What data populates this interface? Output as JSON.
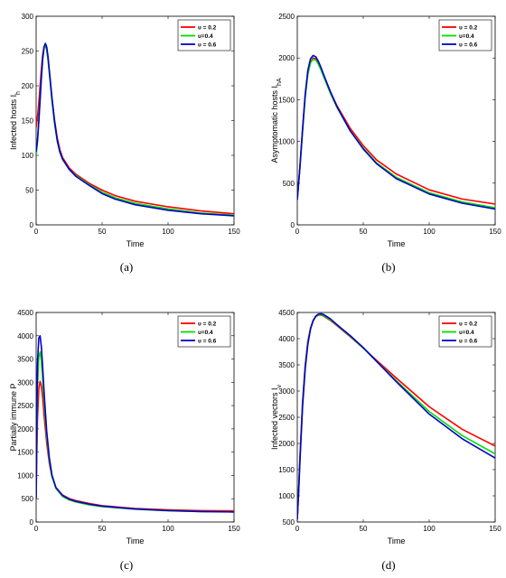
{
  "chart_data": [
    {
      "type": "line",
      "caption": "(a)",
      "xlabel": "Time",
      "ylabel": "Infected  hosts  I",
      "ylabel_sub": "h",
      "xlim": [
        0,
        150
      ],
      "ylim": [
        0,
        300
      ],
      "xticks": [
        0,
        50,
        100,
        150
      ],
      "yticks": [
        0,
        50,
        100,
        150,
        200,
        250,
        300
      ],
      "legend_position": "top-right",
      "grid": false,
      "series": [
        {
          "name": "υ = 0.2",
          "color": "#ff0000",
          "x": [
            0,
            1,
            2,
            3,
            4,
            5,
            6,
            7,
            8,
            9,
            10,
            12,
            14,
            16,
            18,
            20,
            25,
            30,
            40,
            50,
            60,
            75,
            100,
            125,
            150
          ],
          "y": [
            140,
            155,
            175,
            200,
            225,
            245,
            256,
            258,
            252,
            238,
            220,
            182,
            150,
            125,
            108,
            97,
            82,
            73,
            60,
            50,
            42,
            34,
            26,
            20,
            16
          ]
        },
        {
          "name": "υ=0.4",
          "color": "#00dd00",
          "x": [
            0,
            1,
            2,
            3,
            4,
            5,
            6,
            7,
            8,
            9,
            10,
            12,
            14,
            16,
            18,
            20,
            25,
            30,
            40,
            50,
            60,
            75,
            100,
            125,
            150
          ],
          "y": [
            100,
            122,
            150,
            182,
            212,
            238,
            254,
            258,
            252,
            238,
            218,
            178,
            145,
            120,
            104,
            94,
            80,
            71,
            58,
            47,
            39,
            31,
            23,
            17,
            14
          ]
        },
        {
          "name": "υ = 0.6",
          "color": "#0000cc",
          "x": [
            0,
            1,
            2,
            3,
            4,
            5,
            6,
            7,
            8,
            9,
            10,
            12,
            14,
            16,
            18,
            20,
            25,
            30,
            40,
            50,
            60,
            75,
            100,
            125,
            150
          ],
          "y": [
            105,
            120,
            148,
            180,
            213,
            240,
            256,
            261,
            256,
            242,
            222,
            182,
            148,
            122,
            105,
            95,
            80,
            70,
            57,
            45,
            37,
            29,
            21,
            16,
            13
          ]
        }
      ]
    },
    {
      "type": "line",
      "caption": "(b)",
      "xlabel": "Time",
      "ylabel": "Asymptomatic  hosts  I",
      "ylabel_sub": "hA",
      "xlim": [
        0,
        150
      ],
      "ylim": [
        0,
        2500
      ],
      "xticks": [
        0,
        50,
        100,
        150
      ],
      "yticks": [
        0,
        500,
        1000,
        1500,
        2000,
        2500
      ],
      "legend_position": "top-right",
      "grid": false,
      "series": [
        {
          "name": "υ = 0.2",
          "color": "#ff0000",
          "x": [
            0,
            2,
            4,
            6,
            8,
            10,
            12,
            14,
            16,
            18,
            20,
            25,
            30,
            40,
            50,
            60,
            75,
            100,
            125,
            150
          ],
          "y": [
            300,
            700,
            1150,
            1550,
            1820,
            1950,
            2000,
            1990,
            1940,
            1870,
            1790,
            1600,
            1430,
            1160,
            950,
            780,
            610,
            420,
            310,
            250
          ]
        },
        {
          "name": "υ=0.4",
          "color": "#00dd00",
          "x": [
            0,
            2,
            4,
            6,
            8,
            10,
            12,
            14,
            16,
            18,
            20,
            25,
            30,
            40,
            50,
            60,
            75,
            100,
            125,
            150
          ],
          "y": [
            300,
            680,
            1120,
            1520,
            1800,
            1940,
            1985,
            1975,
            1925,
            1855,
            1775,
            1580,
            1410,
            1130,
            920,
            745,
            570,
            385,
            275,
            205
          ]
        },
        {
          "name": "υ = 0.6",
          "color": "#0000cc",
          "x": [
            0,
            2,
            4,
            6,
            8,
            10,
            12,
            14,
            16,
            18,
            20,
            25,
            30,
            40,
            50,
            60,
            75,
            100,
            125,
            150
          ],
          "y": [
            300,
            690,
            1140,
            1560,
            1850,
            1990,
            2030,
            2015,
            1960,
            1885,
            1800,
            1600,
            1420,
            1130,
            910,
            735,
            555,
            370,
            260,
            190
          ]
        }
      ]
    },
    {
      "type": "line",
      "caption": "(c)",
      "xlabel": "Time",
      "ylabel": "Partially  immune  P",
      "ylabel_sub": "",
      "xlim": [
        0,
        150
      ],
      "ylim": [
        0,
        4500
      ],
      "xticks": [
        0,
        50,
        100,
        150
      ],
      "yticks": [
        0,
        500,
        1000,
        1500,
        2000,
        2500,
        3000,
        3500,
        4000,
        4500
      ],
      "legend_position": "top-right",
      "grid": false,
      "series": [
        {
          "name": "υ = 0.2",
          "color": "#ff0000",
          "x": [
            0,
            0.5,
            1,
            2,
            3,
            4,
            5,
            6,
            8,
            10,
            12,
            15,
            20,
            25,
            30,
            40,
            50,
            75,
            100,
            125,
            150
          ],
          "y": [
            500,
            1400,
            2200,
            2850,
            3020,
            2920,
            2650,
            2300,
            1700,
            1260,
            970,
            740,
            580,
            505,
            460,
            400,
            350,
            290,
            260,
            245,
            240
          ]
        },
        {
          "name": "υ=0.4",
          "color": "#00dd00",
          "x": [
            0,
            0.5,
            1,
            2,
            3,
            4,
            5,
            6,
            8,
            10,
            12,
            15,
            20,
            25,
            30,
            40,
            50,
            75,
            100,
            125,
            150
          ],
          "y": [
            500,
            1800,
            2900,
            3550,
            3650,
            3450,
            3050,
            2600,
            1850,
            1320,
            980,
            720,
            550,
            475,
            430,
            370,
            330,
            275,
            240,
            225,
            220
          ]
        },
        {
          "name": "υ = 0.6",
          "color": "#0000cc",
          "x": [
            0,
            0.5,
            1,
            2,
            3,
            4,
            5,
            6,
            8,
            10,
            12,
            15,
            20,
            25,
            30,
            40,
            50,
            75,
            100,
            125,
            150
          ],
          "y": [
            500,
            2200,
            3400,
            3950,
            4000,
            3750,
            3300,
            2800,
            1950,
            1380,
            1010,
            740,
            570,
            490,
            445,
            385,
            340,
            280,
            245,
            225,
            215
          ]
        }
      ]
    },
    {
      "type": "line",
      "caption": "(d)",
      "xlabel": "Time",
      "ylabel": "Infected  vectors  I",
      "ylabel_sub": "v",
      "xlim": [
        0,
        150
      ],
      "ylim": [
        500,
        4500
      ],
      "xticks": [
        0,
        50,
        100,
        150
      ],
      "yticks": [
        500,
        1000,
        1500,
        2000,
        2500,
        3000,
        3500,
        4000,
        4500
      ],
      "legend_position": "top-right",
      "grid": false,
      "series": [
        {
          "name": "υ = 0.2",
          "color": "#ff0000",
          "x": [
            0,
            1,
            2,
            4,
            6,
            8,
            10,
            12,
            14,
            16,
            18,
            20,
            25,
            30,
            40,
            50,
            60,
            75,
            100,
            125,
            150
          ],
          "y": [
            550,
            1100,
            1750,
            2800,
            3500,
            3950,
            4200,
            4350,
            4420,
            4450,
            4450,
            4430,
            4350,
            4250,
            4040,
            3820,
            3590,
            3250,
            2700,
            2270,
            1950
          ]
        },
        {
          "name": "υ=0.4",
          "color": "#00dd00",
          "x": [
            0,
            1,
            2,
            4,
            6,
            8,
            10,
            12,
            14,
            16,
            18,
            20,
            25,
            30,
            40,
            50,
            60,
            75,
            100,
            125,
            150
          ],
          "y": [
            550,
            1080,
            1700,
            2750,
            3460,
            3920,
            4190,
            4340,
            4420,
            4455,
            4455,
            4440,
            4360,
            4260,
            4050,
            3820,
            3570,
            3200,
            2610,
            2150,
            1800
          ]
        },
        {
          "name": "υ = 0.6",
          "color": "#0000cc",
          "x": [
            0,
            1,
            2,
            4,
            6,
            8,
            10,
            12,
            14,
            16,
            18,
            20,
            25,
            30,
            40,
            50,
            60,
            75,
            100,
            125,
            150
          ],
          "y": [
            550,
            1050,
            1650,
            2700,
            3420,
            3890,
            4180,
            4340,
            4430,
            4470,
            4475,
            4460,
            4380,
            4270,
            4060,
            3830,
            3570,
            3180,
            2560,
            2090,
            1720
          ]
        }
      ]
    }
  ]
}
